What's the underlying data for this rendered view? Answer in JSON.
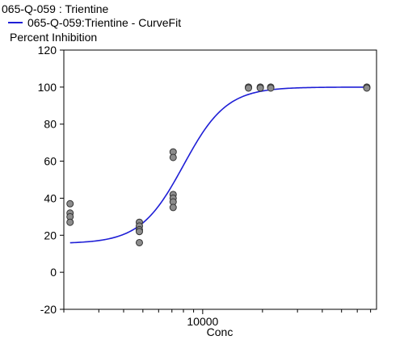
{
  "chart_data": {
    "type": "scatter",
    "title": "065-Q-059  : Trientine",
    "legend": {
      "entries": [
        "065-Q-059:Trientine - CurveFit"
      ],
      "placement": "top-left"
    },
    "ylabel": "Percent Inhibition",
    "xlabel": "Conc",
    "x_scale": "log",
    "xlim": [
      2000,
      75000
    ],
    "ylim": [
      -20,
      120
    ],
    "x_ticks": [
      10000
    ],
    "x_tick_labels": [
      "10000"
    ],
    "y_ticks": [
      -20,
      0,
      20,
      40,
      60,
      80,
      100,
      120
    ],
    "y_tick_labels": [
      "-20",
      "0",
      "20",
      "40",
      "60",
      "80",
      "100",
      "120"
    ],
    "series": [
      {
        "kind": "points",
        "color": "#8c8c8c",
        "points": [
          {
            "x": 2150,
            "y": 37
          },
          {
            "x": 2150,
            "y": 32
          },
          {
            "x": 2150,
            "y": 30
          },
          {
            "x": 2150,
            "y": 27
          },
          {
            "x": 4800,
            "y": 27
          },
          {
            "x": 4800,
            "y": 25
          },
          {
            "x": 4800,
            "y": 23
          },
          {
            "x": 4800,
            "y": 22
          },
          {
            "x": 4800,
            "y": 16
          },
          {
            "x": 7100,
            "y": 65
          },
          {
            "x": 7100,
            "y": 62
          },
          {
            "x": 7100,
            "y": 42
          },
          {
            "x": 7100,
            "y": 40
          },
          {
            "x": 7100,
            "y": 38
          },
          {
            "x": 7100,
            "y": 35
          },
          {
            "x": 17000,
            "y": 100
          },
          {
            "x": 17000,
            "y": 99.5
          },
          {
            "x": 19500,
            "y": 100
          },
          {
            "x": 19500,
            "y": 99.5
          },
          {
            "x": 22000,
            "y": 100
          },
          {
            "x": 22000,
            "y": 99.5
          },
          {
            "x": 67000,
            "y": 100
          },
          {
            "x": 67000,
            "y": 99.5
          }
        ]
      },
      {
        "name": "065-Q-059:Trientine - CurveFit",
        "kind": "curve",
        "color": "#1f1fd6",
        "fit": {
          "bottom": 15.5,
          "top": 100,
          "ec50": 8000,
          "hill": 4
        },
        "x_range": [
          2150,
          67000
        ]
      }
    ]
  }
}
